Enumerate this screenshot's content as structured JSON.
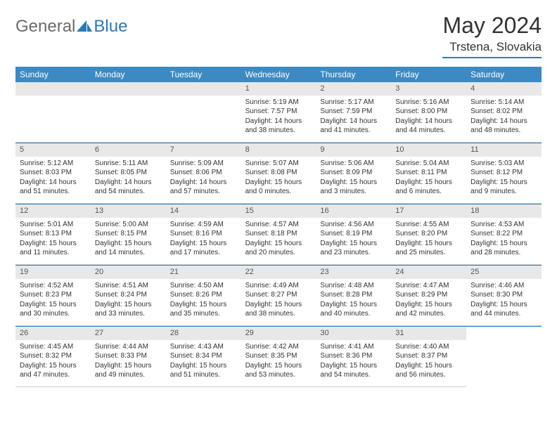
{
  "brand": {
    "general": "General",
    "blue": "Blue",
    "general_color": "#6b6b6b",
    "blue_color": "#2a7ab8",
    "icon_color": "#2a7ab8"
  },
  "header": {
    "month_title": "May 2024",
    "location": "Trstena, Slovakia"
  },
  "colors": {
    "header_bg": "#3b8ac4",
    "header_text": "#ffffff",
    "daynum_bg": "#e8e8e8",
    "daynum_text": "#555555",
    "rule": "#2a7ab8",
    "cell_border": "#cfcfcf",
    "body_text": "#333333",
    "page_bg": "#ffffff"
  },
  "typography": {
    "month_title_size": 32,
    "location_size": 17,
    "dayname_size": 12,
    "daynum_size": 11,
    "cell_text_size": 10
  },
  "daynames": [
    "Sunday",
    "Monday",
    "Tuesday",
    "Wednesday",
    "Thursday",
    "Friday",
    "Saturday"
  ],
  "leading_blanks": 3,
  "days": [
    {
      "num": "1",
      "sunrise": "Sunrise: 5:19 AM",
      "sunset": "Sunset: 7:57 PM",
      "day1": "Daylight: 14 hours",
      "day2": "and 38 minutes."
    },
    {
      "num": "2",
      "sunrise": "Sunrise: 5:17 AM",
      "sunset": "Sunset: 7:59 PM",
      "day1": "Daylight: 14 hours",
      "day2": "and 41 minutes."
    },
    {
      "num": "3",
      "sunrise": "Sunrise: 5:16 AM",
      "sunset": "Sunset: 8:00 PM",
      "day1": "Daylight: 14 hours",
      "day2": "and 44 minutes."
    },
    {
      "num": "4",
      "sunrise": "Sunrise: 5:14 AM",
      "sunset": "Sunset: 8:02 PM",
      "day1": "Daylight: 14 hours",
      "day2": "and 48 minutes."
    },
    {
      "num": "5",
      "sunrise": "Sunrise: 5:12 AM",
      "sunset": "Sunset: 8:03 PM",
      "day1": "Daylight: 14 hours",
      "day2": "and 51 minutes."
    },
    {
      "num": "6",
      "sunrise": "Sunrise: 5:11 AM",
      "sunset": "Sunset: 8:05 PM",
      "day1": "Daylight: 14 hours",
      "day2": "and 54 minutes."
    },
    {
      "num": "7",
      "sunrise": "Sunrise: 5:09 AM",
      "sunset": "Sunset: 8:06 PM",
      "day1": "Daylight: 14 hours",
      "day2": "and 57 minutes."
    },
    {
      "num": "8",
      "sunrise": "Sunrise: 5:07 AM",
      "sunset": "Sunset: 8:08 PM",
      "day1": "Daylight: 15 hours",
      "day2": "and 0 minutes."
    },
    {
      "num": "9",
      "sunrise": "Sunrise: 5:06 AM",
      "sunset": "Sunset: 8:09 PM",
      "day1": "Daylight: 15 hours",
      "day2": "and 3 minutes."
    },
    {
      "num": "10",
      "sunrise": "Sunrise: 5:04 AM",
      "sunset": "Sunset: 8:11 PM",
      "day1": "Daylight: 15 hours",
      "day2": "and 6 minutes."
    },
    {
      "num": "11",
      "sunrise": "Sunrise: 5:03 AM",
      "sunset": "Sunset: 8:12 PM",
      "day1": "Daylight: 15 hours",
      "day2": "and 9 minutes."
    },
    {
      "num": "12",
      "sunrise": "Sunrise: 5:01 AM",
      "sunset": "Sunset: 8:13 PM",
      "day1": "Daylight: 15 hours",
      "day2": "and 11 minutes."
    },
    {
      "num": "13",
      "sunrise": "Sunrise: 5:00 AM",
      "sunset": "Sunset: 8:15 PM",
      "day1": "Daylight: 15 hours",
      "day2": "and 14 minutes."
    },
    {
      "num": "14",
      "sunrise": "Sunrise: 4:59 AM",
      "sunset": "Sunset: 8:16 PM",
      "day1": "Daylight: 15 hours",
      "day2": "and 17 minutes."
    },
    {
      "num": "15",
      "sunrise": "Sunrise: 4:57 AM",
      "sunset": "Sunset: 8:18 PM",
      "day1": "Daylight: 15 hours",
      "day2": "and 20 minutes."
    },
    {
      "num": "16",
      "sunrise": "Sunrise: 4:56 AM",
      "sunset": "Sunset: 8:19 PM",
      "day1": "Daylight: 15 hours",
      "day2": "and 23 minutes."
    },
    {
      "num": "17",
      "sunrise": "Sunrise: 4:55 AM",
      "sunset": "Sunset: 8:20 PM",
      "day1": "Daylight: 15 hours",
      "day2": "and 25 minutes."
    },
    {
      "num": "18",
      "sunrise": "Sunrise: 4:53 AM",
      "sunset": "Sunset: 8:22 PM",
      "day1": "Daylight: 15 hours",
      "day2": "and 28 minutes."
    },
    {
      "num": "19",
      "sunrise": "Sunrise: 4:52 AM",
      "sunset": "Sunset: 8:23 PM",
      "day1": "Daylight: 15 hours",
      "day2": "and 30 minutes."
    },
    {
      "num": "20",
      "sunrise": "Sunrise: 4:51 AM",
      "sunset": "Sunset: 8:24 PM",
      "day1": "Daylight: 15 hours",
      "day2": "and 33 minutes."
    },
    {
      "num": "21",
      "sunrise": "Sunrise: 4:50 AM",
      "sunset": "Sunset: 8:26 PM",
      "day1": "Daylight: 15 hours",
      "day2": "and 35 minutes."
    },
    {
      "num": "22",
      "sunrise": "Sunrise: 4:49 AM",
      "sunset": "Sunset: 8:27 PM",
      "day1": "Daylight: 15 hours",
      "day2": "and 38 minutes."
    },
    {
      "num": "23",
      "sunrise": "Sunrise: 4:48 AM",
      "sunset": "Sunset: 8:28 PM",
      "day1": "Daylight: 15 hours",
      "day2": "and 40 minutes."
    },
    {
      "num": "24",
      "sunrise": "Sunrise: 4:47 AM",
      "sunset": "Sunset: 8:29 PM",
      "day1": "Daylight: 15 hours",
      "day2": "and 42 minutes."
    },
    {
      "num": "25",
      "sunrise": "Sunrise: 4:46 AM",
      "sunset": "Sunset: 8:30 PM",
      "day1": "Daylight: 15 hours",
      "day2": "and 44 minutes."
    },
    {
      "num": "26",
      "sunrise": "Sunrise: 4:45 AM",
      "sunset": "Sunset: 8:32 PM",
      "day1": "Daylight: 15 hours",
      "day2": "and 47 minutes."
    },
    {
      "num": "27",
      "sunrise": "Sunrise: 4:44 AM",
      "sunset": "Sunset: 8:33 PM",
      "day1": "Daylight: 15 hours",
      "day2": "and 49 minutes."
    },
    {
      "num": "28",
      "sunrise": "Sunrise: 4:43 AM",
      "sunset": "Sunset: 8:34 PM",
      "day1": "Daylight: 15 hours",
      "day2": "and 51 minutes."
    },
    {
      "num": "29",
      "sunrise": "Sunrise: 4:42 AM",
      "sunset": "Sunset: 8:35 PM",
      "day1": "Daylight: 15 hours",
      "day2": "and 53 minutes."
    },
    {
      "num": "30",
      "sunrise": "Sunrise: 4:41 AM",
      "sunset": "Sunset: 8:36 PM",
      "day1": "Daylight: 15 hours",
      "day2": "and 54 minutes."
    },
    {
      "num": "31",
      "sunrise": "Sunrise: 4:40 AM",
      "sunset": "Sunset: 8:37 PM",
      "day1": "Daylight: 15 hours",
      "day2": "and 56 minutes."
    }
  ]
}
